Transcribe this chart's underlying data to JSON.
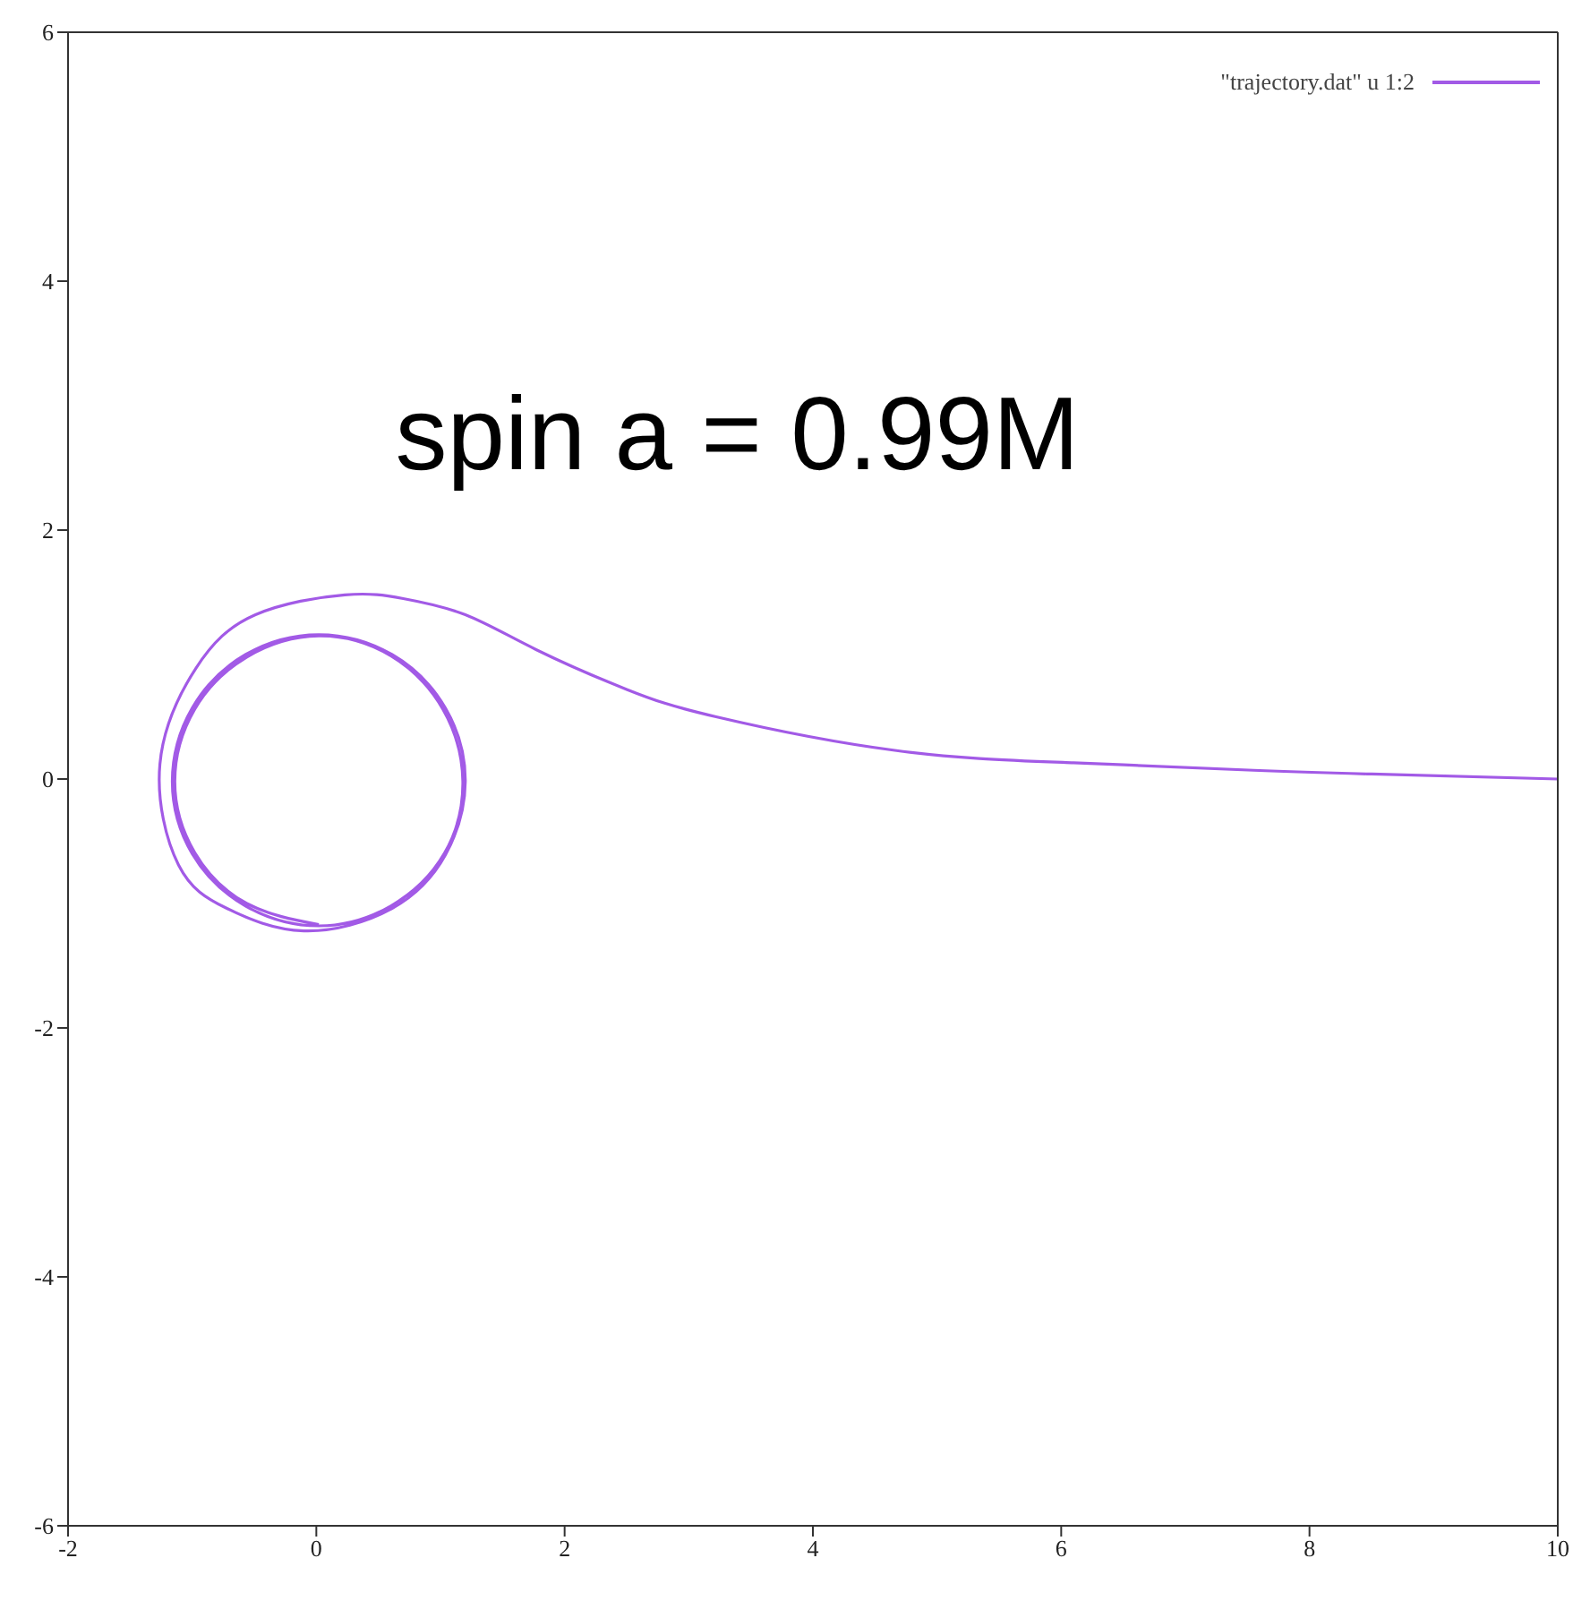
{
  "chart_data": {
    "type": "line",
    "xlim": [
      -2,
      10
    ],
    "ylim": [
      -6,
      6
    ],
    "xticks": [
      -2,
      0,
      2,
      4,
      6,
      8,
      10
    ],
    "yticks": [
      -6,
      -4,
      -2,
      0,
      2,
      4,
      6
    ],
    "legend": "top right",
    "marker": "none",
    "line_style": "solid",
    "annotations": [
      "spin a = 0.99M"
    ],
    "series": [
      {
        "name": "\"trajectory.dat\" u 1:2",
        "color": "#a25ae6",
        "x": [
          10,
          8.5,
          7.55,
          6.1,
          4.66,
          3.22,
          2.5,
          1.77,
          1.2,
          0.7,
          0.23,
          -0.49,
          -0.97,
          -1.26,
          -1.11,
          -0.72,
          -0.1,
          0.61,
          1.04,
          1.2,
          1.04,
          0.61,
          0.02,
          -0.57,
          -1.0,
          -1.16,
          -1.0,
          -0.57,
          0.02,
          0.6,
          1.03,
          1.18,
          1.02,
          0.6,
          0.02,
          -0.56,
          -0.98,
          -1.14,
          -0.98,
          -0.56,
          0.02
        ],
        "values": [
          0,
          0.04,
          0.07,
          0.13,
          0.23,
          0.5,
          0.72,
          1.04,
          1.32,
          1.45,
          1.48,
          1.32,
          0.89,
          0.12,
          -0.69,
          -1.04,
          -1.22,
          -1.04,
          -0.61,
          -0.02,
          0.57,
          1.0,
          1.16,
          1.0,
          0.57,
          -0.02,
          -0.6,
          -1.02,
          -1.18,
          -1.02,
          -0.6,
          -0.02,
          0.56,
          0.99,
          1.15,
          0.98,
          0.56,
          -0.02,
          -0.59,
          -1.0,
          -1.17
        ]
      }
    ]
  }
}
